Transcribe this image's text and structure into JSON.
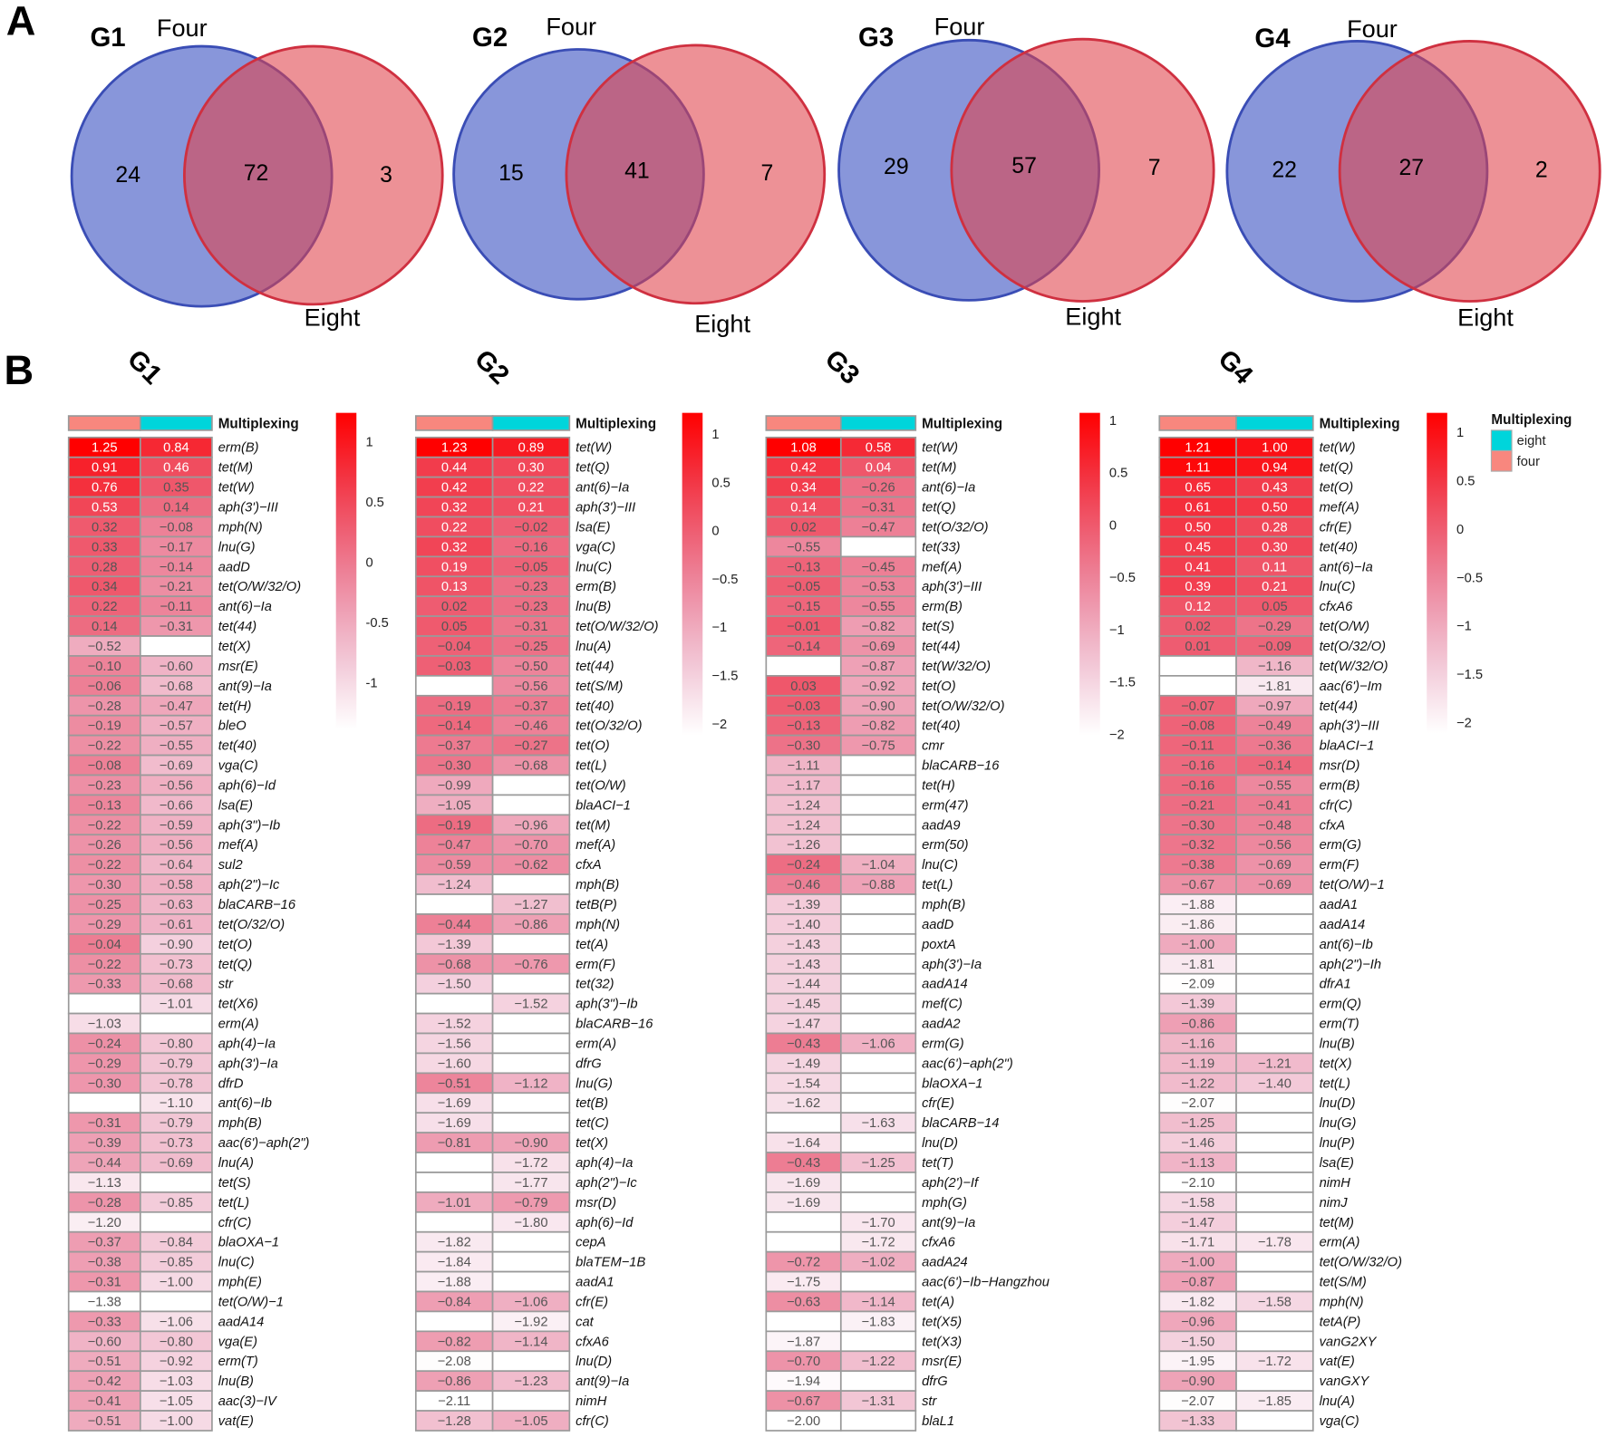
{
  "panel_labels": {
    "a": "A",
    "b": "B"
  },
  "colors": {
    "four": "#F8877E",
    "eight": "#00D5DB",
    "venn_blue": "#3F56C4",
    "venn_red": "#E0424A"
  },
  "venn": [
    {
      "title": "G1",
      "set_a": "Four",
      "set_b": "Eight",
      "only_a": "24",
      "both": "72",
      "only_b": "3"
    },
    {
      "title": "G2",
      "set_a": "Four",
      "set_b": "Eight",
      "only_a": "15",
      "both": "41",
      "only_b": "7"
    },
    {
      "title": "G3",
      "set_a": "Four",
      "set_b": "Eight",
      "only_a": "29",
      "both": "57",
      "only_b": "7"
    },
    {
      "title": "G4",
      "set_a": "Four",
      "set_b": "Eight",
      "only_a": "22",
      "both": "27",
      "only_b": "2"
    }
  ],
  "annotation_label": "Multiplexing",
  "legend": {
    "title": "Multiplexing",
    "items": [
      "eight",
      "four"
    ]
  },
  "chart_data": [
    {
      "type": "heatmap",
      "title": "G1",
      "columns": [
        "four",
        "eight"
      ],
      "colorbar_ticks": [
        "1",
        "0.5",
        "0",
        "-0.5",
        "-1"
      ],
      "colorbar_tick_values": [
        1,
        0.5,
        0,
        -0.5,
        -1
      ],
      "genes": [
        "erm(B)",
        "tet(M)",
        "tet(W)",
        "aph(3')−III",
        "mph(N)",
        "lnu(G)",
        "aadD",
        "tet(O/W/32/O)",
        "ant(6)−Ia",
        "tet(44)",
        "tet(X)",
        "msr(E)",
        "ant(9)−Ia",
        "tet(H)",
        "bleO",
        "tet(40)",
        "vga(C)",
        "aph(6)−Id",
        "lsa(E)",
        "aph(3\")−Ib",
        "mef(A)",
        "sul2",
        "aph(2\")−Ic",
        "blaCARB−16",
        "tet(O/32/O)",
        "tet(O)",
        "tet(Q)",
        "str",
        "tet(X6)",
        "erm(A)",
        "aph(4)−Ia",
        "aph(3')−Ia",
        "dfrD",
        "ant(6)−Ib",
        "mph(B)",
        "aac(6')−aph(2\")",
        "lnu(A)",
        "tet(S)",
        "tet(L)",
        "cfr(C)",
        "blaOXA−1",
        "lnu(C)",
        "mph(E)",
        "tet(O/W)−1",
        "aadA14",
        "vga(E)",
        "erm(T)",
        "lnu(B)",
        "aac(3)−IV",
        "vat(E)"
      ],
      "four": [
        1.25,
        0.91,
        0.76,
        0.53,
        0.32,
        0.33,
        0.28,
        0.34,
        0.22,
        0.14,
        -0.52,
        -0.1,
        -0.06,
        -0.28,
        -0.19,
        -0.22,
        -0.08,
        -0.23,
        -0.13,
        -0.22,
        -0.26,
        -0.22,
        -0.3,
        -0.25,
        -0.29,
        -0.04,
        -0.22,
        -0.33,
        null,
        -1.03,
        -0.24,
        -0.29,
        -0.3,
        null,
        -0.31,
        -0.39,
        -0.44,
        -1.13,
        -0.28,
        -1.2,
        -0.37,
        -0.38,
        -0.31,
        -1.38,
        -0.33,
        -0.6,
        -0.51,
        -0.42,
        -0.41,
        -0.51
      ],
      "eight": [
        0.84,
        0.46,
        0.35,
        0.14,
        -0.08,
        -0.17,
        -0.14,
        -0.21,
        -0.11,
        -0.31,
        null,
        -0.6,
        -0.68,
        -0.47,
        -0.57,
        -0.55,
        -0.69,
        -0.56,
        -0.66,
        -0.59,
        -0.56,
        -0.64,
        -0.58,
        -0.63,
        -0.61,
        -0.9,
        -0.73,
        -0.68,
        -1.01,
        null,
        -0.8,
        -0.79,
        -0.78,
        -1.1,
        -0.79,
        -0.73,
        -0.69,
        null,
        -0.85,
        null,
        -0.84,
        -0.85,
        -1.0,
        null,
        -1.06,
        -0.8,
        -0.92,
        -1.03,
        -1.05,
        -1.0
      ]
    },
    {
      "type": "heatmap",
      "title": "G2",
      "columns": [
        "four",
        "eight"
      ],
      "colorbar_ticks": [
        "1",
        "0.5",
        "0",
        "−0.5",
        "−1",
        "−1.5",
        "−2"
      ],
      "colorbar_tick_values": [
        1,
        0.5,
        0,
        -0.5,
        -1,
        -1.5,
        -2
      ],
      "genes": [
        "tet(W)",
        "tet(Q)",
        "ant(6)−Ia",
        "aph(3')−III",
        "lsa(E)",
        "vga(C)",
        "lnu(C)",
        "erm(B)",
        "lnu(B)",
        "tet(O/W/32/O)",
        "lnu(A)",
        "tet(44)",
        "tet(S/M)",
        "tet(40)",
        "tet(O/32/O)",
        "tet(O)",
        "tet(L)",
        "tet(O/W)",
        "blaACI−1",
        "tet(M)",
        "mef(A)",
        "cfxA",
        "mph(B)",
        "tetB(P)",
        "mph(N)",
        "tet(A)",
        "erm(F)",
        "tet(32)",
        "aph(3\")−Ib",
        "blaCARB−16",
        "erm(A)",
        "dfrG",
        "lnu(G)",
        "tet(B)",
        "tet(C)",
        "tet(X)",
        "aph(4)−Ia",
        "aph(2\")−Ic",
        "msr(D)",
        "aph(6)−Id",
        "cepA",
        "blaTEM−1B",
        "aadA1",
        "cfr(E)",
        "cat",
        "cfxA6",
        "lnu(D)",
        "ant(9)−Ia",
        "nimH",
        "cfr(C)"
      ],
      "four": [
        1.23,
        0.44,
        0.42,
        0.32,
        0.22,
        0.32,
        0.19,
        0.13,
        0.02,
        0.05,
        -0.04,
        -0.03,
        null,
        -0.19,
        -0.14,
        -0.37,
        -0.3,
        -0.99,
        -1.05,
        -0.19,
        -0.47,
        -0.59,
        -1.24,
        null,
        -0.44,
        -1.39,
        -0.68,
        -1.5,
        null,
        -1.52,
        -1.56,
        -1.6,
        -0.51,
        -1.69,
        -1.69,
        -0.81,
        null,
        null,
        -1.01,
        null,
        -1.82,
        -1.84,
        -1.88,
        -0.84,
        null,
        -0.82,
        -2.08,
        -0.86,
        -2.11,
        -1.28
      ],
      "eight": [
        0.89,
        0.3,
        0.22,
        0.21,
        -0.02,
        -0.16,
        -0.05,
        -0.23,
        -0.23,
        -0.31,
        -0.25,
        -0.5,
        -0.56,
        -0.37,
        -0.46,
        -0.27,
        -0.68,
        null,
        null,
        -0.96,
        -0.7,
        -0.62,
        null,
        -1.27,
        -0.86,
        null,
        -0.76,
        null,
        -1.52,
        null,
        null,
        null,
        -1.12,
        null,
        null,
        -0.9,
        -1.72,
        -1.77,
        -0.79,
        -1.8,
        null,
        null,
        null,
        -1.06,
        -1.92,
        -1.14,
        null,
        -1.23,
        null,
        -1.05
      ]
    },
    {
      "type": "heatmap",
      "title": "G3",
      "columns": [
        "four",
        "eight"
      ],
      "colorbar_ticks": [
        "1",
        "0.5",
        "0",
        "−0.5",
        "−1",
        "−1.5",
        "−2"
      ],
      "colorbar_tick_values": [
        1,
        0.5,
        0,
        -0.5,
        -1,
        -1.5,
        -2
      ],
      "genes": [
        "tet(W)",
        "tet(M)",
        "ant(6)−Ia",
        "tet(Q)",
        "tet(O/32/O)",
        "tet(33)",
        "mef(A)",
        "aph(3')−III",
        "erm(B)",
        "tet(S)",
        "tet(44)",
        "tet(W/32/O)",
        "tet(O)",
        "tet(O/W/32/O)",
        "tet(40)",
        "cmr",
        "blaCARB−16",
        "tet(H)",
        "erm(47)",
        "aadA9",
        "erm(50)",
        "lnu(C)",
        "tet(L)",
        "mph(B)",
        "aadD",
        "poxtA",
        "aph(3')−Ia",
        "aadA14",
        "mef(C)",
        "aadA2",
        "erm(G)",
        "aac(6')−aph(2\")",
        "blaOXA−1",
        "cfr(E)",
        "blaCARB−14",
        "lnu(D)",
        "tet(T)",
        "aph(2')−If",
        "mph(G)",
        "ant(9)−Ia",
        "cfxA6",
        "aadA24",
        "aac(6')−Ib−Hangzhou",
        "tet(A)",
        "tet(X5)",
        "tet(X3)",
        "msr(E)",
        "dfrG",
        "str",
        "blaL1"
      ],
      "four": [
        1.08,
        0.42,
        0.34,
        0.14,
        0.02,
        -0.55,
        -0.13,
        -0.05,
        -0.15,
        -0.01,
        -0.14,
        null,
        0.03,
        -0.03,
        -0.13,
        -0.3,
        -1.11,
        -1.17,
        -1.24,
        -1.24,
        -1.26,
        -0.24,
        -0.46,
        -1.39,
        -1.4,
        -1.43,
        -1.43,
        -1.44,
        -1.45,
        -1.47,
        -0.43,
        -1.49,
        -1.54,
        -1.62,
        null,
        -1.64,
        -0.43,
        -1.69,
        -1.69,
        null,
        null,
        -0.72,
        -1.75,
        -0.63,
        null,
        -1.87,
        -0.7,
        -1.94,
        -0.67,
        -2.0
      ],
      "eight": [
        0.58,
        0.04,
        -0.26,
        -0.31,
        -0.47,
        null,
        -0.45,
        -0.53,
        -0.55,
        -0.82,
        -0.69,
        -0.87,
        -0.92,
        -0.9,
        -0.82,
        -0.75,
        null,
        null,
        null,
        null,
        null,
        -1.04,
        -0.88,
        null,
        null,
        null,
        null,
        null,
        null,
        null,
        -1.06,
        null,
        null,
        null,
        -1.63,
        null,
        -1.25,
        null,
        null,
        -1.7,
        -1.72,
        -1.02,
        null,
        -1.14,
        -1.83,
        null,
        -1.22,
        null,
        -1.31,
        null
      ]
    },
    {
      "type": "heatmap",
      "title": "G4",
      "columns": [
        "four",
        "eight"
      ],
      "colorbar_ticks": [
        "1",
        "0.5",
        "0",
        "−0.5",
        "−1",
        "−1.5",
        "−2"
      ],
      "colorbar_tick_values": [
        1,
        0.5,
        0,
        -0.5,
        -1,
        -1.5,
        -2
      ],
      "genes": [
        "tet(W)",
        "tet(Q)",
        "tet(O)",
        "mef(A)",
        "cfr(E)",
        "tet(40)",
        "ant(6)−Ia",
        "lnu(C)",
        "cfxA6",
        "tet(O/W)",
        "tet(O/32/O)",
        "tet(W/32/O)",
        "aac(6')−Im",
        "tet(44)",
        "aph(3')−III",
        "blaACI−1",
        "msr(D)",
        "erm(B)",
        "cfr(C)",
        "cfxA",
        "erm(G)",
        "erm(F)",
        "tet(O/W)−1",
        "aadA1",
        "aadA14",
        "ant(6)−Ib",
        "aph(2\")−Ih",
        "dfrA1",
        "erm(Q)",
        "erm(T)",
        "lnu(B)",
        "tet(X)",
        "tet(L)",
        "lnu(D)",
        "lnu(G)",
        "lnu(P)",
        "lsa(E)",
        "nimH",
        "nimJ",
        "tet(M)",
        "erm(A)",
        "tet(O/W/32/O)",
        "tet(S/M)",
        "mph(N)",
        "tetA(P)",
        "vanG2XY",
        "vat(E)",
        "vanGXY",
        "lnu(A)",
        "vga(C)"
      ],
      "four": [
        1.21,
        1.11,
        0.65,
        0.61,
        0.5,
        0.45,
        0.41,
        0.39,
        0.12,
        0.02,
        0.01,
        null,
        null,
        -0.07,
        -0.08,
        -0.11,
        -0.16,
        -0.16,
        -0.21,
        -0.3,
        -0.32,
        -0.38,
        -0.67,
        -1.88,
        -1.86,
        -1.0,
        -1.81,
        -2.09,
        -1.39,
        -0.86,
        -1.16,
        -1.19,
        -1.22,
        -2.07,
        -1.25,
        -1.46,
        -1.13,
        -2.1,
        -1.58,
        -1.47,
        -1.71,
        -1.0,
        -0.87,
        -1.82,
        -0.96,
        -1.5,
        -1.95,
        -0.9,
        -2.07,
        -1.33
      ],
      "eight": [
        1.0,
        0.94,
        0.43,
        0.5,
        0.28,
        0.3,
        0.11,
        0.21,
        0.05,
        -0.29,
        -0.09,
        -1.16,
        -1.81,
        -0.97,
        -0.49,
        -0.36,
        -0.14,
        -0.55,
        -0.41,
        -0.48,
        -0.56,
        -0.69,
        -0.69,
        null,
        null,
        null,
        null,
        null,
        null,
        null,
        null,
        -1.21,
        -1.4,
        null,
        null,
        null,
        null,
        null,
        null,
        null,
        -1.78,
        null,
        null,
        -1.58,
        null,
        null,
        -1.72,
        null,
        -1.85,
        null
      ]
    }
  ]
}
